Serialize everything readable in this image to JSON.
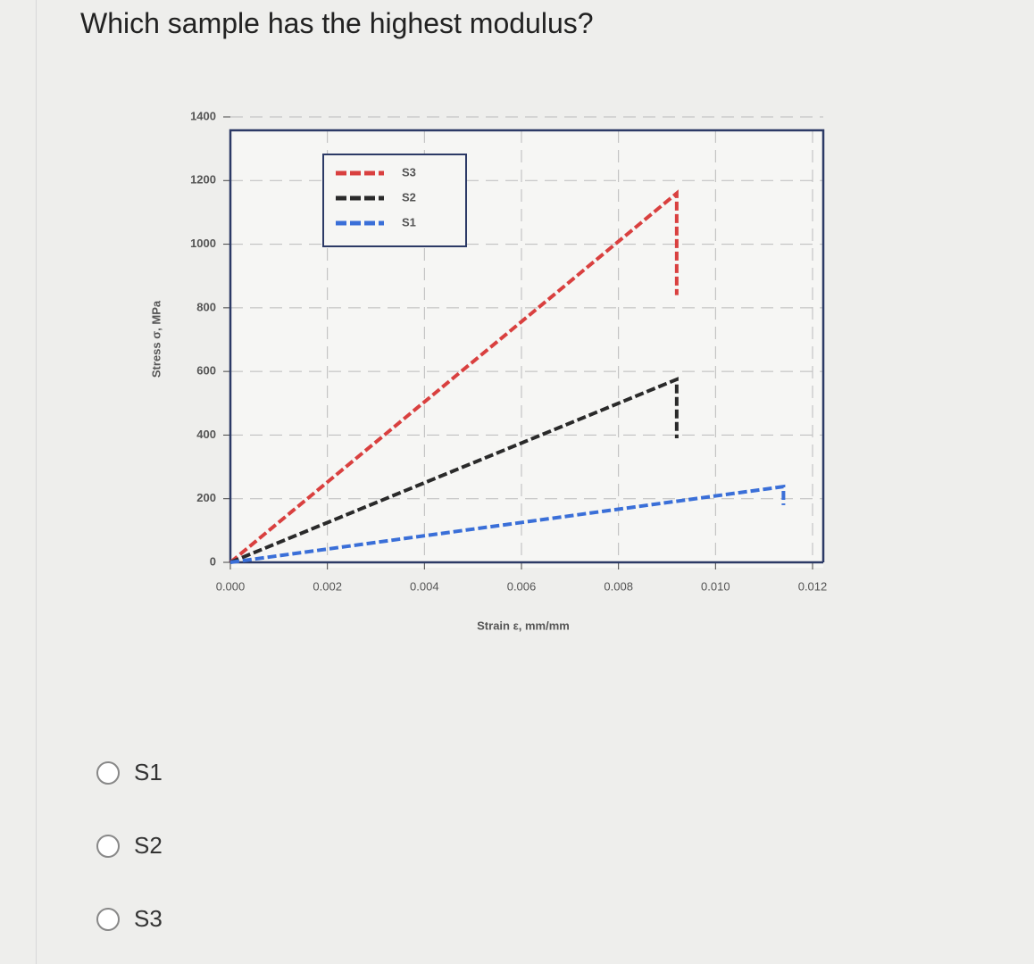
{
  "question": "Which sample has the highest modulus?",
  "chart_data": {
    "type": "line",
    "ylabel": "Stress σ, MPa",
    "xlabel": "Strain ε, mm/mm",
    "xlim": [
      0,
      0.012
    ],
    "ylim": [
      0,
      1400
    ],
    "xticks": [
      {
        "value": 0,
        "label": "0.000"
      },
      {
        "value": 0.002,
        "label": "0.002"
      },
      {
        "value": 0.004,
        "label": "0.004"
      },
      {
        "value": 0.006,
        "label": "0.006"
      },
      {
        "value": 0.008,
        "label": "0.008"
      },
      {
        "value": 0.01,
        "label": "0.010"
      },
      {
        "value": 0.012,
        "label": "0.012"
      }
    ],
    "yticks": [
      0,
      200,
      400,
      600,
      800,
      1000,
      1200,
      1400
    ],
    "grid": true,
    "series": [
      {
        "name": "S3",
        "color": "#d9403f",
        "x": [
          0,
          0.0092,
          0.0092
        ],
        "values": [
          0,
          1160,
          840
        ]
      },
      {
        "name": "S2",
        "color": "#2a2a2a",
        "x": [
          0,
          0.0092,
          0.0092
        ],
        "values": [
          0,
          575,
          390
        ]
      },
      {
        "name": "S1",
        "color": "#3a6fd8",
        "x": [
          0,
          0.0114,
          0.0114
        ],
        "values": [
          0,
          238,
          180
        ]
      }
    ]
  },
  "options": [
    "S1",
    "S2",
    "S3"
  ]
}
